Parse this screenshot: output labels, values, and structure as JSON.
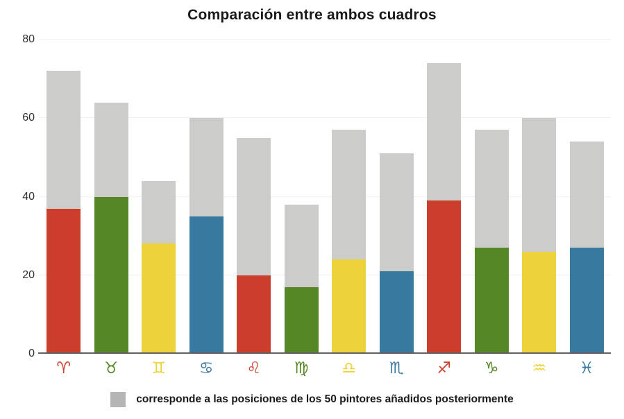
{
  "title": "Comparación entre ambos cuadros",
  "legend": {
    "swatch_color": "#b5b5b5",
    "label": "corresponde a las posiciones de los 50 pintores añadidos posteriormente"
  },
  "colors": {
    "red": "#cc3e2c",
    "green": "#568727",
    "yellow": "#eed23b",
    "blue": "#38799f",
    "gray_bar": "#cccccb",
    "axis_line": "#606060",
    "gridline": "#f0f0ef",
    "title_text": "#1a1a1a",
    "tick_text": "#2e2e2e"
  },
  "chart_data": {
    "type": "bar",
    "stacked": true,
    "title": "Comparación entre ambos cuadros",
    "categories": [
      "♈",
      "♉",
      "♊",
      "♋",
      "♌",
      "♍",
      "♎",
      "♏",
      "♐",
      "♑",
      "♒",
      "♓"
    ],
    "category_names": [
      "aries",
      "tauro",
      "geminis",
      "cancer",
      "leo",
      "virgo",
      "libra",
      "escorpio",
      "sagitario",
      "capricornio",
      "acuario",
      "piscis"
    ],
    "category_colors": [
      "#cc3e2c",
      "#568727",
      "#eed23b",
      "#38799f",
      "#cc3e2c",
      "#568727",
      "#eed23b",
      "#38799f",
      "#cc3e2c",
      "#568727",
      "#eed23b",
      "#38799f"
    ],
    "series": [
      {
        "name": "",
        "values": [
          37,
          40,
          28,
          35,
          20,
          17,
          24,
          21,
          39,
          27,
          26,
          27
        ]
      },
      {
        "name": "corresponde a las posiciones de los 50 pintores añadidos posteriormente",
        "values": [
          35,
          24,
          16,
          25,
          35,
          21,
          33,
          30,
          35,
          30,
          34,
          27
        ],
        "color": "#cccccb"
      }
    ],
    "stack_totals": [
      72,
      64,
      44,
      60,
      55,
      38,
      57,
      51,
      74,
      57,
      60,
      54
    ],
    "ylim": [
      0,
      80
    ],
    "y_ticks": [
      0,
      20,
      40,
      60,
      80
    ],
    "xlabel": "",
    "ylabel": "",
    "grid": true,
    "legend_position": "bottom"
  }
}
